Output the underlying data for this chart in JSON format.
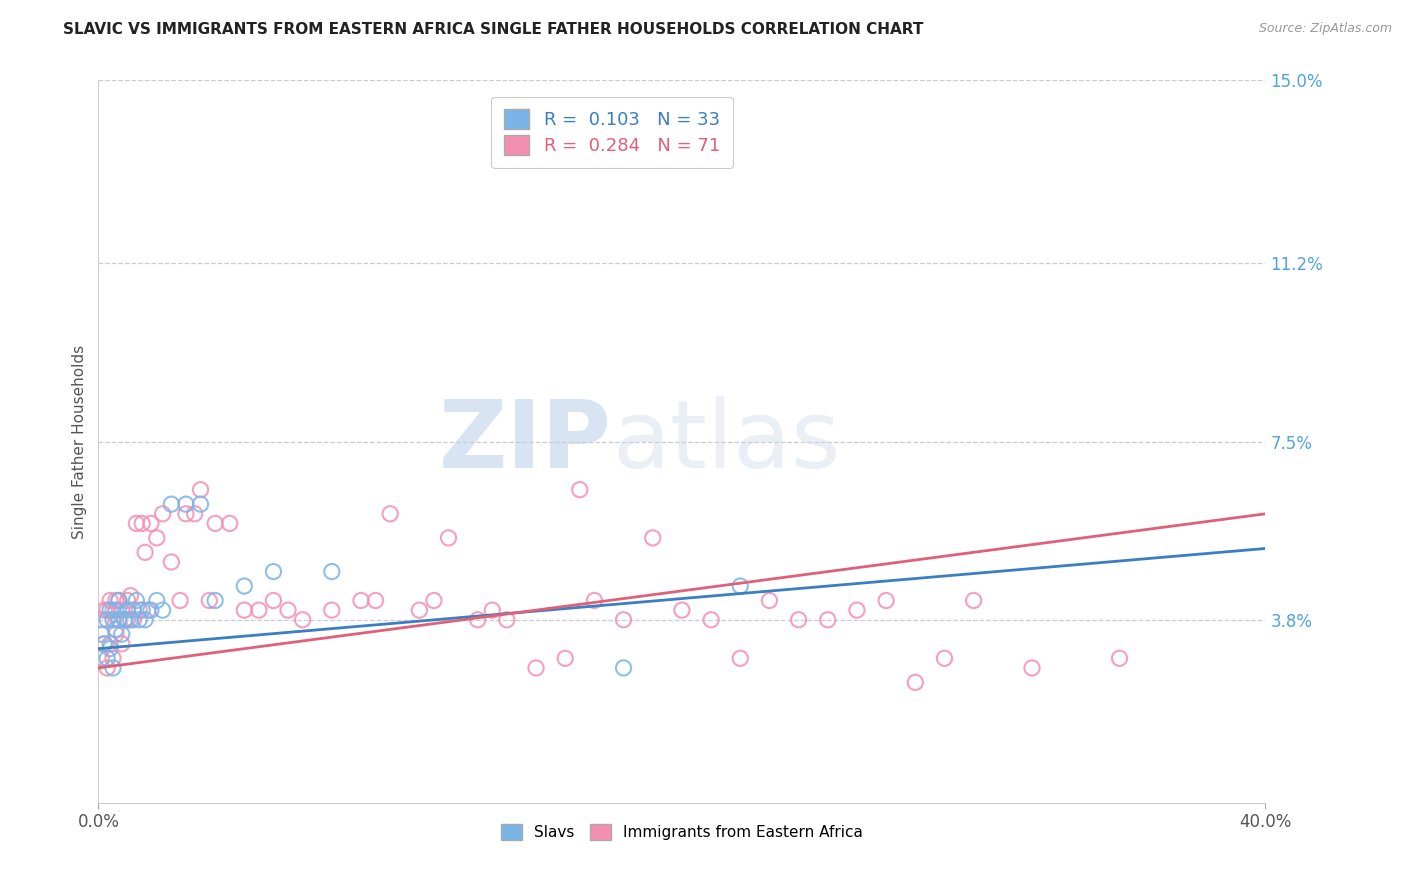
{
  "title": "SLAVIC VS IMMIGRANTS FROM EASTERN AFRICA SINGLE FATHER HOUSEHOLDS CORRELATION CHART",
  "source": "Source: ZipAtlas.com",
  "ylabel": "Single Father Households",
  "xlim": [
    0.0,
    0.4
  ],
  "ylim": [
    0.0,
    0.15
  ],
  "yticks": [
    0.038,
    0.075,
    0.112,
    0.15
  ],
  "ytick_labels": [
    "3.8%",
    "7.5%",
    "11.2%",
    "15.0%"
  ],
  "xticks": [
    0.0,
    0.4
  ],
  "xtick_labels": [
    "0.0%",
    "40.0%"
  ],
  "background_color": "#ffffff",
  "grid_color": "#cccccc",
  "slavic_color": "#7ab4e8",
  "eastern_africa_color": "#f48fb1",
  "slavic_line_color": "#3a7fc1",
  "eastern_africa_line_color": "#e0607a",
  "R_slavic": 0.103,
  "N_slavic": 33,
  "R_eastern_africa": 0.284,
  "N_eastern_africa": 71,
  "watermark_ZIP": "ZIP",
  "watermark_atlas": "atlas",
  "slavs_label": "Slavs",
  "eastern_africa_label": "Immigrants from Eastern Africa",
  "slavic_points_x": [
    0.001,
    0.002,
    0.003,
    0.003,
    0.004,
    0.004,
    0.005,
    0.005,
    0.006,
    0.006,
    0.007,
    0.007,
    0.008,
    0.009,
    0.01,
    0.011,
    0.012,
    0.013,
    0.014,
    0.015,
    0.016,
    0.018,
    0.02,
    0.022,
    0.025,
    0.03,
    0.035,
    0.04,
    0.05,
    0.06,
    0.08,
    0.18,
    0.22
  ],
  "slavic_points_y": [
    0.035,
    0.033,
    0.03,
    0.038,
    0.032,
    0.04,
    0.028,
    0.038,
    0.036,
    0.04,
    0.038,
    0.042,
    0.035,
    0.038,
    0.04,
    0.038,
    0.04,
    0.042,
    0.038,
    0.04,
    0.038,
    0.04,
    0.042,
    0.04,
    0.062,
    0.062,
    0.062,
    0.042,
    0.045,
    0.048,
    0.048,
    0.028,
    0.045
  ],
  "eastern_africa_points_x": [
    0.001,
    0.001,
    0.002,
    0.002,
    0.003,
    0.003,
    0.004,
    0.004,
    0.005,
    0.005,
    0.006,
    0.006,
    0.007,
    0.007,
    0.008,
    0.008,
    0.009,
    0.01,
    0.01,
    0.011,
    0.012,
    0.013,
    0.014,
    0.015,
    0.016,
    0.017,
    0.018,
    0.02,
    0.022,
    0.025,
    0.028,
    0.03,
    0.033,
    0.035,
    0.038,
    0.04,
    0.045,
    0.05,
    0.055,
    0.06,
    0.065,
    0.07,
    0.08,
    0.09,
    0.095,
    0.1,
    0.11,
    0.115,
    0.12,
    0.13,
    0.135,
    0.14,
    0.15,
    0.16,
    0.165,
    0.17,
    0.18,
    0.19,
    0.2,
    0.21,
    0.22,
    0.23,
    0.24,
    0.25,
    0.26,
    0.27,
    0.28,
    0.29,
    0.3,
    0.32,
    0.35
  ],
  "eastern_africa_points_y": [
    0.03,
    0.038,
    0.033,
    0.04,
    0.028,
    0.04,
    0.033,
    0.042,
    0.03,
    0.04,
    0.035,
    0.042,
    0.038,
    0.042,
    0.033,
    0.04,
    0.038,
    0.038,
    0.042,
    0.043,
    0.038,
    0.058,
    0.04,
    0.058,
    0.052,
    0.04,
    0.058,
    0.055,
    0.06,
    0.05,
    0.042,
    0.06,
    0.06,
    0.065,
    0.042,
    0.058,
    0.058,
    0.04,
    0.04,
    0.042,
    0.04,
    0.038,
    0.04,
    0.042,
    0.042,
    0.06,
    0.04,
    0.042,
    0.055,
    0.038,
    0.04,
    0.038,
    0.028,
    0.03,
    0.065,
    0.042,
    0.038,
    0.055,
    0.04,
    0.038,
    0.03,
    0.042,
    0.038,
    0.038,
    0.04,
    0.042,
    0.025,
    0.03,
    0.042,
    0.028,
    0.03
  ]
}
